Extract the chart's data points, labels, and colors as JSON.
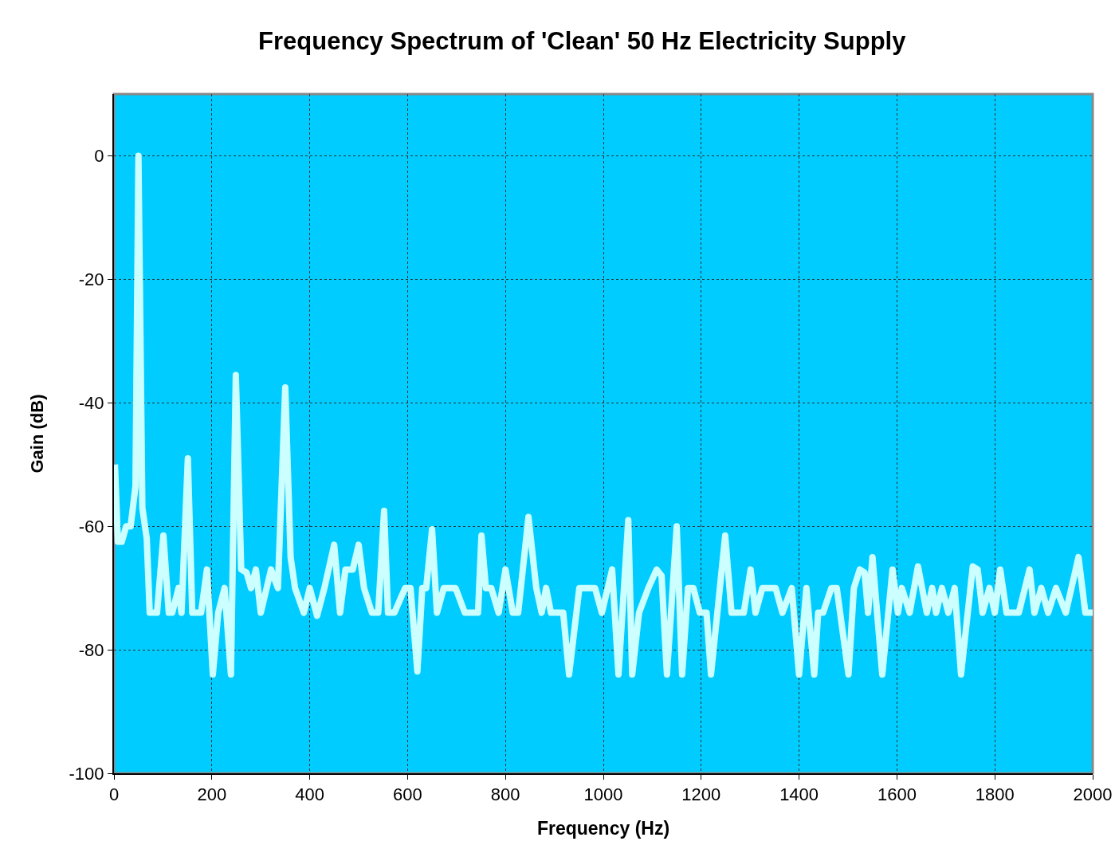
{
  "chart_data": {
    "type": "line",
    "title": "Frequency Spectrum of 'Clean' 50 Hz Electricity Supply",
    "xlabel": "Frequency (Hz)",
    "ylabel": "Gain (dB)",
    "xlim": [
      0,
      2000
    ],
    "ylim": [
      -100,
      10
    ],
    "xticks": [
      0,
      200,
      400,
      600,
      800,
      1000,
      1200,
      1400,
      1600,
      1800,
      2000
    ],
    "yticks": [
      -100,
      -80,
      -60,
      -40,
      -20,
      0
    ],
    "grid": true,
    "marker": "none",
    "line_style": "solid",
    "x": [
      2,
      8,
      16,
      25,
      34,
      44,
      50,
      58,
      67,
      73,
      88,
      101,
      112,
      119,
      132,
      138,
      151,
      160,
      178,
      190,
      202,
      213,
      226,
      239,
      249,
      260,
      271,
      280,
      290,
      300,
      321,
      335,
      350,
      361,
      370,
      388,
      400,
      415,
      430,
      450,
      462,
      473,
      488,
      500,
      511,
      527,
      540,
      552,
      560,
      573,
      595,
      606,
      620,
      630,
      638,
      650,
      660,
      674,
      698,
      717,
      744,
      751,
      760,
      771,
      786,
      800,
      815,
      826,
      847,
      863,
      874,
      883,
      893,
      904,
      918,
      930,
      951,
      983,
      997,
      1018,
      1031,
      1051,
      1059,
      1073,
      1092,
      1109,
      1119,
      1130,
      1150,
      1161,
      1173,
      1184,
      1197,
      1211,
      1220,
      1233,
      1249,
      1262,
      1287,
      1301,
      1311,
      1325,
      1352,
      1366,
      1385,
      1400,
      1415,
      1431,
      1439,
      1449,
      1466,
      1477,
      1501,
      1512,
      1524,
      1534,
      1541,
      1550,
      1570,
      1591,
      1602,
      1610,
      1626,
      1643,
      1661,
      1672,
      1680,
      1692,
      1705,
      1718,
      1731,
      1755,
      1765,
      1775,
      1789,
      1800,
      1811,
      1824,
      1849,
      1871,
      1881,
      1895,
      1909,
      1925,
      1945,
      1971,
      1985,
      2000
    ],
    "series": [
      {
        "color": "#ccffff",
        "values": [
          -50,
          -62.5,
          -62.5,
          -60,
          -60,
          -53.5,
          0,
          -57,
          -62,
          -74,
          -74,
          -61.5,
          -74,
          -74,
          -70,
          -74,
          -49,
          -74,
          -74,
          -67,
          -84,
          -74,
          -70,
          -84,
          -35.5,
          -67,
          -67.5,
          -70,
          -67,
          -74,
          -67,
          -70,
          -37.5,
          -65,
          -70,
          -74,
          -70,
          -74.5,
          -70,
          -63,
          -74,
          -67,
          -67,
          -63,
          -70,
          -74,
          -74,
          -57.5,
          -74,
          -74,
          -70,
          -70,
          -83.5,
          -70,
          -70,
          -60.5,
          -74,
          -70,
          -70,
          -74,
          -74,
          -61.5,
          -70,
          -70,
          -74,
          -67,
          -74,
          -74,
          -58.5,
          -70,
          -74,
          -70,
          -74,
          -74,
          -74,
          -84,
          -70,
          -70,
          -74,
          -67,
          -84,
          -59,
          -84,
          -74,
          -70,
          -67,
          -68,
          -84,
          -60,
          -84,
          -70,
          -70,
          -74,
          -74,
          -84,
          -74,
          -61.5,
          -74,
          -74,
          -67,
          -74,
          -70,
          -70,
          -74,
          -70,
          -84,
          -70,
          -84,
          -74,
          -74,
          -70,
          -70,
          -84,
          -70,
          -67,
          -67.5,
          -74,
          -65,
          -84,
          -67,
          -74,
          -70,
          -74,
          -66.5,
          -74,
          -70,
          -74,
          -70,
          -74,
          -70,
          -84,
          -66.5,
          -67,
          -74,
          -70,
          -74,
          -67,
          -74,
          -74,
          -67,
          -74,
          -70,
          -74,
          -70,
          -74,
          -65,
          -74,
          -74
        ]
      }
    ]
  }
}
